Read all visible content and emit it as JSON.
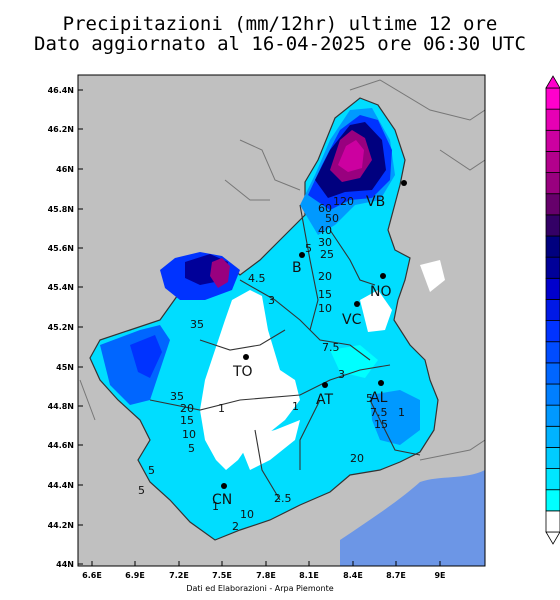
{
  "title": {
    "line1": "Precipitazioni (mm/12hr) ultime 12 ore",
    "line2": "Dato aggiornato al 16-04-2025 ore 06:30 UTC"
  },
  "credit": "Dati ed Elaborazioni - Arpa Piemonte",
  "map": {
    "lat_labels": [
      "46.4N",
      "46.2N",
      "46N",
      "45.8N",
      "45.6N",
      "45.4N",
      "45.2N",
      "45N",
      "44.8N",
      "44.6N",
      "44.4N",
      "44.2N",
      "44N"
    ],
    "lon_labels": [
      "6.6E",
      "6.9E",
      "7.2E",
      "7.5E",
      "7.8E",
      "8.1E",
      "8.4E",
      "8.7E",
      "9E"
    ],
    "cities": [
      {
        "label": "TO"
      },
      {
        "label": "VC"
      },
      {
        "label": "NO"
      },
      {
        "label": "VB"
      },
      {
        "label": "B"
      },
      {
        "label": "AT"
      },
      {
        "label": "AL"
      },
      {
        "label": "CN"
      }
    ],
    "contour_labels": [
      "120",
      "60",
      "50",
      "40",
      "30",
      "25",
      "20",
      "15",
      "10",
      "5",
      "4.5",
      "3",
      "35",
      "7.5",
      "3",
      "35",
      "20",
      "15",
      "10",
      "5",
      "1",
      "1",
      "5",
      "7.5",
      "15",
      "1",
      "20",
      "5",
      "5",
      "2.5",
      "10",
      "2",
      "1"
    ]
  },
  "colors": {
    "land_outside": "#c0c0c0",
    "sea": "#6c96e6",
    "no_rain": "#ffffff",
    "colorbar": [
      "#ffffff",
      "#00ffff",
      "#00e6ff",
      "#00ccff",
      "#00b3ff",
      "#0099ff",
      "#007fff",
      "#0066ff",
      "#004cff",
      "#0033ff",
      "#0019e6",
      "#0000cc",
      "#000099",
      "#00007f",
      "#330066",
      "#66006b",
      "#99007f",
      "#b3008c",
      "#cc00a0",
      "#e600b4",
      "#ff00cc"
    ]
  }
}
